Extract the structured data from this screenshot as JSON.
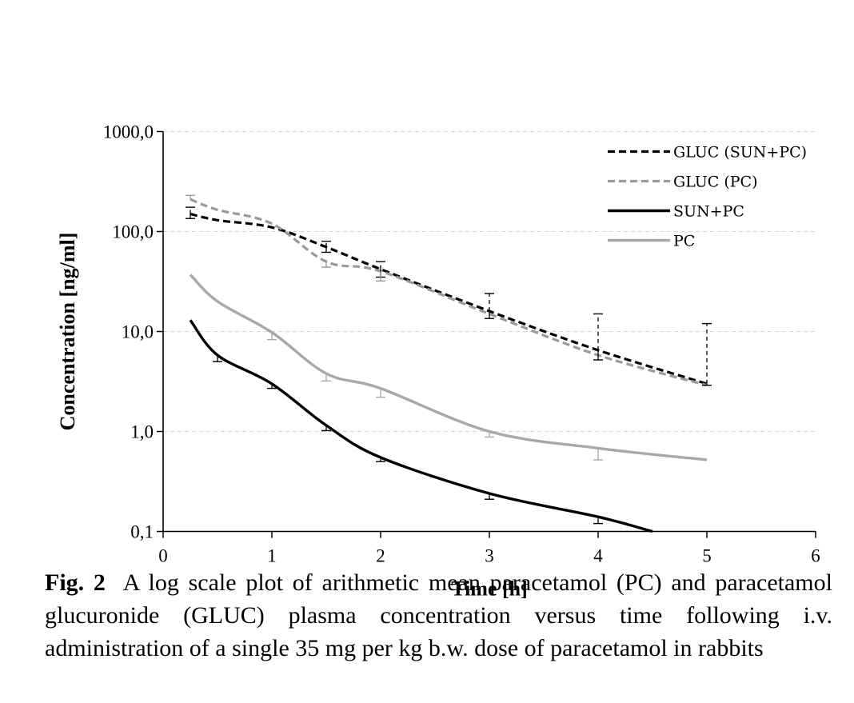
{
  "chart_data": {
    "type": "line",
    "xlabel": "Time [h]",
    "ylabel": "Concentration [ng/ml]",
    "xlim": [
      0,
      6
    ],
    "ylim": [
      0.1,
      1000
    ],
    "yscale": "log",
    "x_ticks": [
      "0",
      "1",
      "2",
      "3",
      "4",
      "5",
      "6"
    ],
    "y_ticks": [
      "0,1",
      "1,0",
      "10,0",
      "100,0",
      "1000,0"
    ],
    "grid": "horizontal dashed",
    "legend_position": "top-right",
    "series": [
      {
        "name": "GLUC (SUN+PC)",
        "color": "#000000",
        "style": "dashed",
        "x": [
          0.25,
          0.5,
          1,
          1.5,
          2,
          3,
          4,
          5
        ],
        "y": [
          150,
          130,
          110,
          70,
          42,
          16,
          6.5,
          3.0
        ],
        "err_upper": [
          175,
          null,
          null,
          80,
          50,
          24,
          15,
          12
        ],
        "err_lower": [
          135,
          null,
          null,
          62,
          35,
          13.5,
          5.2,
          2.9
        ]
      },
      {
        "name": "GLUC (PC)",
        "color": "#9a9a9a",
        "style": "dashed",
        "x": [
          0.25,
          0.5,
          1,
          1.5,
          2,
          3,
          4,
          5
        ],
        "y": [
          210,
          165,
          120,
          50,
          40,
          15,
          5.8,
          2.9
        ],
        "err_upper": [
          230,
          null,
          null,
          null,
          null,
          null,
          null,
          null
        ],
        "err_lower": [
          null,
          null,
          null,
          44,
          32,
          null,
          null,
          null
        ]
      },
      {
        "name": "SUN+PC",
        "color": "#000000",
        "style": "solid",
        "x": [
          0.25,
          0.5,
          1,
          1.5,
          2,
          3,
          4,
          4.5
        ],
        "y": [
          13,
          5.8,
          3.0,
          1.15,
          0.55,
          0.24,
          0.14,
          0.1
        ],
        "err_upper": [
          null,
          null,
          null,
          null,
          null,
          null,
          null,
          null
        ],
        "err_lower": [
          null,
          5.0,
          2.7,
          1.02,
          0.5,
          0.21,
          0.12,
          null
        ]
      },
      {
        "name": "PC",
        "color": "#a8a8a8",
        "style": "solid",
        "x": [
          0.25,
          0.5,
          1,
          1.5,
          2,
          3,
          4,
          5
        ],
        "y": [
          37,
          20,
          9.8,
          3.8,
          2.7,
          1.0,
          0.68,
          0.52
        ],
        "err_upper": [
          null,
          null,
          null,
          null,
          null,
          null,
          null,
          null
        ],
        "err_lower": [
          null,
          null,
          8.3,
          3.2,
          2.2,
          0.88,
          0.52,
          null
        ]
      }
    ]
  },
  "caption": {
    "label": "Fig. 2",
    "text": "A log scale plot of arithmetic mean paracetamol (PC) and paracetamol glucuronide (GLUC) plasma concentration versus time following i.v. administration of a single 35 mg per kg b.w. dose of paracetamol in rabbits"
  }
}
